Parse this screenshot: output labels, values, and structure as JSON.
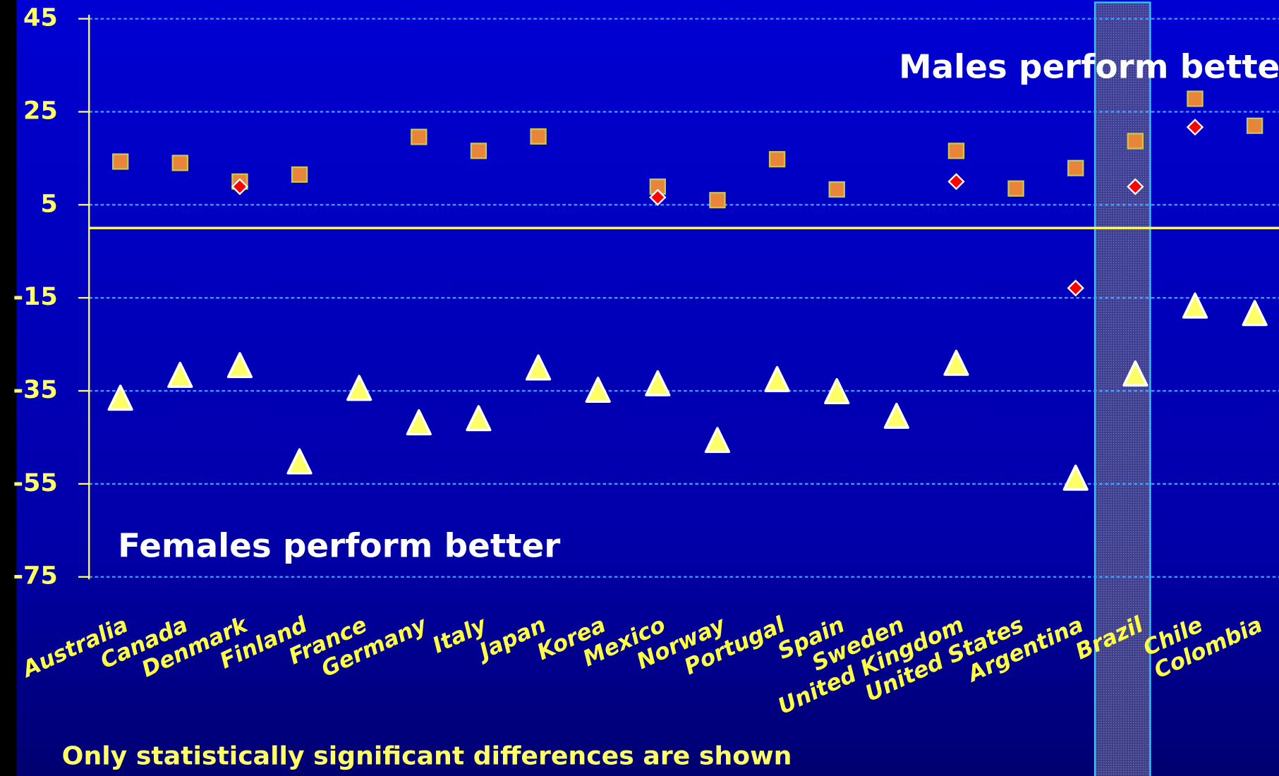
{
  "chart_data": {
    "type": "scatter",
    "categories": [
      "Australia",
      "Canada",
      "Denmark",
      "Finland",
      "France",
      "Germany",
      "Italy",
      "Japan",
      "Korea",
      "Mexico",
      "Norway",
      "Portugal",
      "Spain",
      "Sweden",
      "United Kingdom",
      "United States",
      "Argentina",
      "Brazil",
      "Chile",
      "Colombia"
    ],
    "series": [
      {
        "marker": "square",
        "color": "#e8853a",
        "values": [
          14.3,
          14,
          10,
          11.5,
          null,
          19.6,
          16.6,
          19.7,
          null,
          8.9,
          6,
          14.8,
          8.3,
          null,
          16.6,
          8.5,
          12.9,
          18.7,
          27.8,
          22
        ]
      },
      {
        "marker": "diamond",
        "color": "#ff0000",
        "values": [
          null,
          null,
          8.9,
          null,
          null,
          null,
          null,
          null,
          null,
          6.6,
          null,
          null,
          null,
          null,
          10,
          null,
          -12.9,
          8.9,
          21.7,
          null
        ]
      },
      {
        "marker": "triangle",
        "color": "#ffff66",
        "values": [
          -36.9,
          -32,
          -29.9,
          -50.6,
          -34.8,
          -42.2,
          -41.3,
          -30.4,
          -35.2,
          -33.8,
          -46,
          -32.9,
          -35.5,
          -40.8,
          -29.4,
          null,
          -54.1,
          -31.7,
          -17.1,
          -18.7
        ]
      }
    ],
    "ylim": [
      45,
      -75
    ],
    "yticks": [
      45,
      25,
      5,
      -15,
      -35,
      -55,
      -75
    ],
    "grid": true,
    "highlight": "Brazil",
    "annotations": [
      "Males perform better",
      "Females perform better"
    ],
    "footnote": "Only statistically significant differences are shown"
  }
}
